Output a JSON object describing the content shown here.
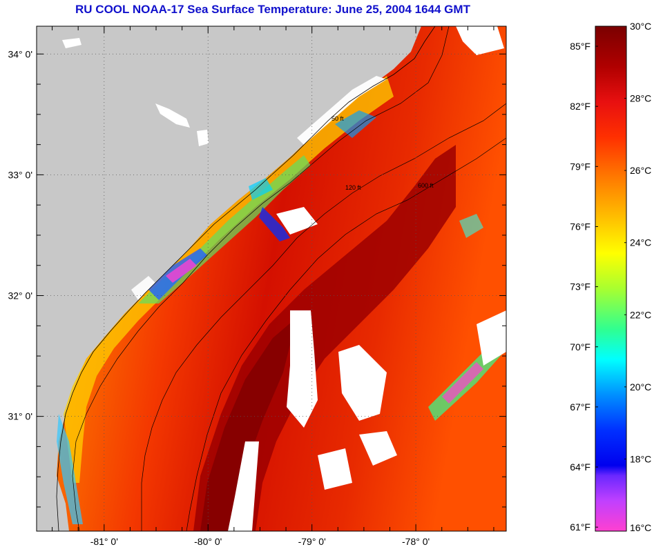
{
  "title": "RU COOL  NOAA-17  Sea Surface Temperature:  June 25, 2004 1644 GMT",
  "map": {
    "lon_range": [
      -81.65,
      -77.13
    ],
    "lat_range": [
      30.05,
      34.23
    ],
    "lat_ticks": [
      {
        "value": 34,
        "label": "34° 0'"
      },
      {
        "value": 33,
        "label": "33° 0'"
      },
      {
        "value": 32,
        "label": "32° 0'"
      },
      {
        "value": 31,
        "label": "31° 0'"
      }
    ],
    "lon_ticks": [
      {
        "value": -81,
        "label": "-81° 0'"
      },
      {
        "value": -80,
        "label": "-80° 0'"
      },
      {
        "value": -79,
        "label": "-79° 0'"
      },
      {
        "value": -78,
        "label": "-78° 0'"
      }
    ],
    "grid": "dotted",
    "contour_labels": [
      "50 ft",
      "120 ft",
      "600 ft"
    ],
    "land_color": "#c8c8c8",
    "cloud_color": "#ffffff"
  },
  "colorbar": {
    "celsius_labels": [
      "30°C",
      "28°C",
      "26°C",
      "24°C",
      "22°C",
      "20°C",
      "18°C",
      "16°C"
    ],
    "fahrenheit_labels": [
      "85°F",
      "82°F",
      "79°F",
      "76°F",
      "73°F",
      "70°F",
      "67°F",
      "64°F",
      "61°F"
    ],
    "celsius_range": [
      16,
      30
    ],
    "fahrenheit_values": [
      85,
      82,
      79,
      76,
      73,
      70,
      67,
      64,
      61
    ]
  }
}
